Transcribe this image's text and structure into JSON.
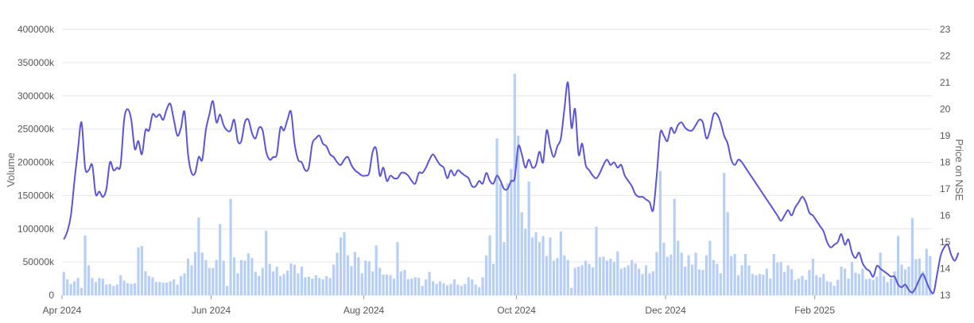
{
  "chart_data": {
    "type": "bar+line",
    "title": "",
    "y_left_label": "Volume",
    "y_right_label": "Price on NSE",
    "y_left_range": [
      0,
      400000
    ],
    "y_left_ticks": [
      "0",
      "50000k",
      "100000k",
      "150000k",
      "200000k",
      "250000k",
      "300000k",
      "350000k",
      "400000k"
    ],
    "y_right_range": [
      13,
      23
    ],
    "y_right_ticks": [
      "13",
      "14",
      "15",
      "16",
      "17",
      "18",
      "19",
      "20",
      "21",
      "22",
      "23"
    ],
    "x_ticks": [
      "Apr 2024",
      "Jun 2024",
      "Aug 2024",
      "Oct 2024",
      "Dec 2024",
      "Feb 2025"
    ],
    "x_tick_index": [
      0,
      42,
      85,
      128,
      170,
      212
    ],
    "grid": true,
    "colors": {
      "bars": "#b8cff5",
      "line": "#5b55d4",
      "grid": "#e6e6e6"
    },
    "series": [
      {
        "kind": "bar",
        "axis": "left",
        "values": [
          35000,
          24000,
          17000,
          21000,
          26000,
          11000,
          90000,
          45000,
          26000,
          20000,
          26000,
          25000,
          16000,
          17000,
          14000,
          16000,
          30000,
          22000,
          18000,
          17000,
          18000,
          72000,
          74000,
          36000,
          29000,
          27000,
          20000,
          20000,
          19000,
          19000,
          21000,
          24000,
          16000,
          29000,
          33000,
          55000,
          45000,
          65000,
          117000,
          64000,
          53000,
          41000,
          41000,
          53000,
          107000,
          52000,
          14000,
          145000,
          57000,
          33000,
          53000,
          52000,
          63000,
          56000,
          35000,
          29000,
          41000,
          97000,
          47000,
          36000,
          43000,
          29000,
          32000,
          37000,
          48000,
          46000,
          33000,
          43000,
          27000,
          28000,
          25000,
          30000,
          26000,
          24000,
          29000,
          26000,
          46000,
          64000,
          87000,
          95000,
          60000,
          44000,
          65000,
          57000,
          33000,
          52000,
          51000,
          36000,
          75000,
          41000,
          31000,
          31000,
          30000,
          25000,
          80000,
          36000,
          38000,
          24000,
          25000,
          27000,
          26000,
          14000,
          24000,
          35000,
          21000,
          17000,
          21000,
          18000,
          15000,
          17000,
          24000,
          16000,
          14000,
          17000,
          27000,
          24000,
          16000,
          12000,
          27000,
          60000,
          90000,
          47000,
          236000,
          168000,
          80000,
          168000,
          190000,
          333000,
          240000,
          125000,
          100000,
          171000,
          87000,
          95000,
          80000,
          89000,
          59000,
          87000,
          52000,
          56000,
          96000,
          60000,
          53000,
          11000,
          41000,
          43000,
          45000,
          52000,
          47000,
          42000,
          103000,
          57000,
          58000,
          52000,
          55000,
          50000,
          66000,
          40000,
          42000,
          45000,
          53000,
          48000,
          40000,
          32000,
          45000,
          33000,
          36000,
          65000,
          187000,
          79000,
          58000,
          61000,
          145000,
          82000,
          64000,
          43000,
          60000,
          46000,
          64000,
          39000,
          38000,
          60000,
          82000,
          53000,
          47000,
          33000,
          184000,
          125000,
          59000,
          62000,
          30000,
          45000,
          62000,
          45000,
          32000,
          30000,
          32000,
          31000,
          40000,
          25000,
          62000,
          49000,
          50000,
          35000,
          45000,
          39000,
          23000,
          25000,
          29000,
          23000,
          38000,
          55000,
          30000,
          27000,
          32000,
          21000,
          20000,
          14000,
          23000,
          43000,
          40000,
          25000,
          50000,
          34000,
          32000,
          40000,
          24000,
          25000,
          23000,
          28000,
          64000,
          29000,
          20000,
          25000,
          36000,
          89000,
          46000,
          39000,
          43000,
          116000,
          54000,
          55000,
          36000,
          70000,
          59000
        ]
      },
      {
        "kind": "line",
        "axis": "right",
        "values": [
          15.1,
          15.4,
          16.0,
          17.3,
          18.5,
          19.5,
          17.8,
          17.7,
          17.9,
          16.8,
          16.9,
          16.7,
          17.0,
          18.0,
          17.7,
          17.8,
          17.9,
          19.6,
          20.0,
          19.6,
          18.5,
          18.8,
          18.3,
          19.2,
          19.2,
          19.8,
          19.7,
          19.8,
          19.6,
          20.0,
          20.2,
          19.6,
          19.0,
          19.3,
          19.9,
          18.3,
          17.6,
          17.6,
          18.2,
          18.1,
          19.2,
          19.8,
          20.3,
          19.5,
          19.8,
          19.4,
          19.2,
          19.2,
          19.6,
          18.8,
          18.8,
          19.5,
          19.6,
          19.1,
          18.9,
          19.3,
          19.2,
          18.4,
          18.1,
          18.2,
          18.3,
          19.3,
          19.2,
          19.6,
          19.9,
          18.7,
          18.1,
          18.0,
          17.7,
          17.8,
          18.7,
          18.9,
          19.0,
          18.7,
          18.6,
          18.3,
          18.2,
          18.0,
          17.9,
          18.1,
          18.2,
          17.9,
          17.7,
          17.6,
          17.5,
          17.5,
          17.6,
          18.4,
          18.5,
          17.5,
          17.8,
          17.3,
          17.5,
          17.4,
          17.4,
          17.6,
          17.6,
          17.5,
          17.3,
          17.2,
          17.6,
          17.6,
          17.8,
          18.1,
          18.3,
          18.1,
          17.9,
          17.8,
          17.4,
          17.7,
          17.5,
          17.7,
          17.6,
          17.5,
          17.4,
          17.1,
          17.1,
          17.3,
          17.2,
          17.6,
          17.3,
          17.2,
          17.5,
          17.3,
          17.0,
          17.0,
          17.3,
          17.4,
          18.6,
          18.3,
          17.8,
          18.1,
          17.8,
          17.9,
          18.4,
          18.0,
          19.2,
          18.6,
          18.2,
          18.6,
          18.9,
          20.0,
          21.0,
          19.3,
          20.0,
          18.3,
          18.7,
          17.9,
          17.7,
          17.5,
          17.4,
          17.6,
          17.9,
          18.1,
          17.9,
          18.0,
          17.8,
          17.9,
          17.5,
          17.3,
          17.1,
          16.8,
          16.7,
          16.7,
          16.6,
          16.5,
          16.2,
          17.5,
          19.1,
          19.0,
          18.8,
          19.3,
          19.1,
          19.4,
          19.5,
          19.3,
          19.2,
          19.2,
          19.4,
          19.6,
          19.5,
          18.9,
          19.2,
          19.8,
          19.8,
          19.5,
          19.0,
          18.7,
          18.1,
          17.9,
          18.1,
          18.0,
          17.8,
          17.6,
          17.4,
          17.2,
          17.0,
          16.8,
          16.6,
          16.4,
          16.2,
          16.0,
          15.8,
          16.0,
          16.2,
          16.0,
          16.3,
          16.5,
          16.7,
          16.5,
          16.1,
          16.0,
          15.8,
          15.6,
          15.4,
          15.0,
          14.8,
          14.9,
          15.0,
          15.3,
          14.9,
          15.1,
          14.6,
          14.4,
          14.6,
          14.2,
          14.0,
          13.9,
          13.7,
          14.1,
          14.0,
          13.9,
          13.8,
          13.7,
          13.7,
          13.4,
          13.3,
          13.4,
          13.2,
          13.1,
          13.3,
          13.6,
          13.8,
          13.5,
          13.2,
          13.1,
          13.8,
          14.5,
          14.8,
          14.9,
          14.5,
          14.3,
          14.6
        ]
      }
    ]
  }
}
